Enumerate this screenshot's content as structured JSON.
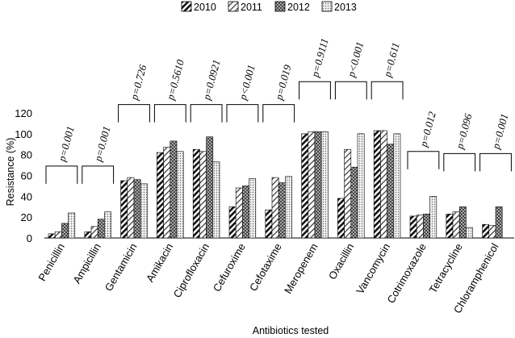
{
  "chart_data": {
    "type": "bar",
    "title": "",
    "xlabel": "Antibiotics tested",
    "ylabel": "Resistance (%)",
    "ylim": [
      0,
      120
    ],
    "yticks": [
      0,
      20,
      40,
      60,
      80,
      100,
      120
    ],
    "grid": false,
    "legend_position": "top",
    "categories": [
      "Penicillin",
      "Ampicillin",
      "Gentamicin",
      "Amikacin",
      "Ciprofloxacin",
      "Cefuroxime",
      "Cefotaxime",
      "Meropenem",
      "Oxacillin",
      "Vancomycin",
      "Cotrimoxazole",
      "Tetracycline",
      "Chloramphenicol"
    ],
    "series": [
      {
        "name": "2010",
        "pattern": "diagonal-heavy",
        "values": [
          4,
          6,
          55,
          82,
          85,
          30,
          27,
          100,
          38,
          103,
          21,
          23,
          13
        ]
      },
      {
        "name": "2011",
        "pattern": "diagonal-light",
        "values": [
          6,
          11,
          58,
          87,
          83,
          48,
          58,
          102,
          85,
          103,
          22,
          25,
          12
        ]
      },
      {
        "name": "2012",
        "pattern": "crosshatch-dark",
        "values": [
          14,
          18,
          56,
          93,
          97,
          50,
          53,
          102,
          68,
          90,
          23,
          30,
          30
        ]
      },
      {
        "name": "2013",
        "pattern": "dotted",
        "values": [
          24,
          25,
          52,
          83,
          73,
          57,
          59,
          102,
          100,
          100,
          40,
          10,
          null
        ]
      }
    ],
    "annotations": {
      "p_values": [
        "p=0.001",
        "p=0.001",
        "p=0.726",
        "p=0.5610",
        "p=0.0921",
        "p<0.001",
        "p=0.019",
        "p=0.9111",
        "p<0.001",
        "p=0.611",
        "p=0.012",
        "p=0.096",
        "p=0.001"
      ],
      "bracket_level": [
        69,
        69,
        128,
        128,
        128,
        128,
        128,
        150,
        150,
        150,
        83,
        81,
        81
      ]
    }
  }
}
